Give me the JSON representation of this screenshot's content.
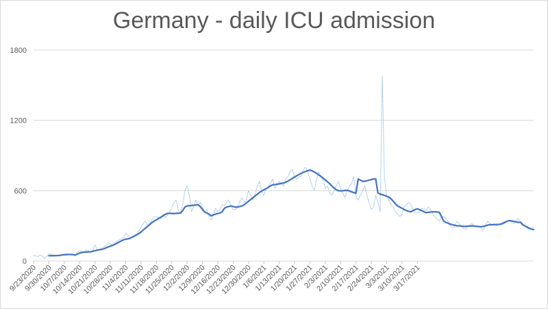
{
  "chart_data": {
    "type": "line",
    "title": "Germany - daily ICU admission",
    "xlabel": "",
    "ylabel": "",
    "ylim": [
      0,
      1800
    ],
    "yticks": [
      0,
      600,
      1200,
      1800
    ],
    "grid": true,
    "legend": "none",
    "x_start": "9/23/2020",
    "x_ticks": [
      "9/23/2020",
      "9/30/2020",
      "10/7/2020",
      "10/14/2020",
      "10/21/2020",
      "10/28/2020",
      "11/4/2020",
      "11/11/2020",
      "11/18/2020",
      "11/25/2020",
      "12/2/2020",
      "12/9/2020",
      "12/16/2020",
      "12/23/2020",
      "12/30/2020",
      "1/6/2021",
      "1/13/2021",
      "1/20/2021",
      "1/27/2021",
      "2/3/2021",
      "2/10/2021",
      "2/17/2021",
      "2/24/2021",
      "3/3/2021",
      "3/10/2021",
      "3/17/2021"
    ],
    "series": [
      {
        "style": "solid",
        "color": "#4472c4",
        "values": [
          null,
          null,
          null,
          null,
          null,
          null,
          null,
          45,
          45,
          45,
          46,
          47,
          48,
          52,
          54,
          55,
          56,
          56,
          55,
          50,
          60,
          68,
          73,
          76,
          77,
          78,
          79,
          84,
          88,
          93,
          96,
          99,
          104,
          112,
          120,
          127,
          134,
          142,
          151,
          162,
          172,
          181,
          186,
          189,
          194,
          204,
          213,
          223,
          234,
          248,
          265,
          281,
          296,
          312,
          328,
          341,
          352,
          363,
          374,
          385,
          397,
          406,
          407,
          406,
          405,
          407,
          408,
          409,
          430,
          460,
          470,
          472,
          474,
          476,
          478,
          480,
          465,
          440,
          418,
          410,
          400,
          385,
          395,
          400,
          405,
          410,
          420,
          450,
          460,
          465,
          470,
          465,
          460,
          460,
          465,
          470,
          480,
          495,
          510,
          525,
          540,
          555,
          570,
          585,
          597,
          608,
          617,
          628,
          640,
          650,
          652,
          655,
          658,
          662,
          666,
          672,
          682,
          693,
          705,
          717,
          728,
          738,
          748,
          756,
          764,
          770,
          776,
          770,
          760,
          748,
          735,
          722,
          708,
          692,
          676,
          660,
          640,
          622,
          608,
          600,
          598,
          600,
          602,
          604,
          598,
          590,
          584,
          578,
          700,
          690,
          680,
          680,
          685,
          690,
          695,
          700,
          700,
          580,
          572,
          566,
          560,
          552,
          545,
          530,
          510,
          488,
          470,
          460,
          450,
          440,
          430,
          425,
          420,
          430,
          440,
          445,
          438,
          430,
          420,
          413,
          416,
          418,
          420,
          420,
          418,
          416,
          380,
          340,
          330,
          322,
          315,
          310,
          305,
          300,
          300,
          298,
          296,
          296,
          297,
          298,
          300,
          298,
          296,
          294,
          292,
          296,
          300,
          306,
          310,
          310,
          310,
          312,
          312,
          314,
          320,
          330,
          340,
          345,
          342,
          338,
          334,
          330,
          330,
          310,
          300,
          290,
          280,
          272,
          268
        ]
      },
      {
        "style": "dotted",
        "color": "#9dc3e6",
        "values": [
          48,
          45,
          38,
          52,
          42,
          25,
          40,
          62,
          58,
          52,
          45,
          48,
          50,
          55,
          58,
          62,
          56,
          52,
          60,
          48,
          78,
          90,
          82,
          70,
          95,
          85,
          80,
          88,
          140,
          95,
          98,
          110,
          120,
          130,
          160,
          148,
          135,
          150,
          170,
          180,
          190,
          200,
          240,
          220,
          200,
          210,
          220,
          230,
          260,
          290,
          320,
          340,
          300,
          320,
          350,
          380,
          380,
          370,
          360,
          400,
          370,
          390,
          420,
          450,
          500,
          520,
          430,
          410,
          480,
          600,
          640,
          560,
          420,
          470,
          520,
          480,
          500,
          460,
          420,
          440,
          380,
          350,
          390,
          450,
          420,
          440,
          480,
          470,
          500,
          520,
          470,
          440,
          440,
          460,
          510,
          540,
          500,
          520,
          600,
          560,
          520,
          570,
          640,
          680,
          590,
          560,
          620,
          640,
          660,
          700,
          620,
          650,
          680,
          660,
          640,
          700,
          720,
          760,
          780,
          720,
          700,
          720,
          720,
          780,
          800,
          760,
          700,
          640,
          600,
          700,
          760,
          720,
          690,
          620,
          640,
          580,
          560,
          600,
          640,
          680,
          620,
          580,
          540,
          600,
          640,
          660,
          720,
          560,
          520,
          560,
          600,
          640,
          560,
          500,
          440,
          460,
          560,
          500,
          420,
          1580,
          700,
          560,
          520,
          480,
          460,
          420,
          400,
          380,
          400,
          460,
          480,
          500,
          480,
          440,
          420,
          410,
          420,
          450,
          440,
          430,
          460,
          440,
          400,
          380,
          360,
          340,
          380,
          380,
          360,
          340,
          300,
          280,
          300,
          340,
          320,
          300,
          280,
          270,
          300,
          310,
          320,
          300,
          290,
          300,
          280,
          260,
          300,
          340,
          320,
          310,
          320,
          300,
          310,
          320,
          330,
          340,
          340,
          350,
          330,
          320,
          340,
          360,
          340,
          320,
          300,
          280,
          270,
          280,
          290
        ]
      }
    ]
  }
}
